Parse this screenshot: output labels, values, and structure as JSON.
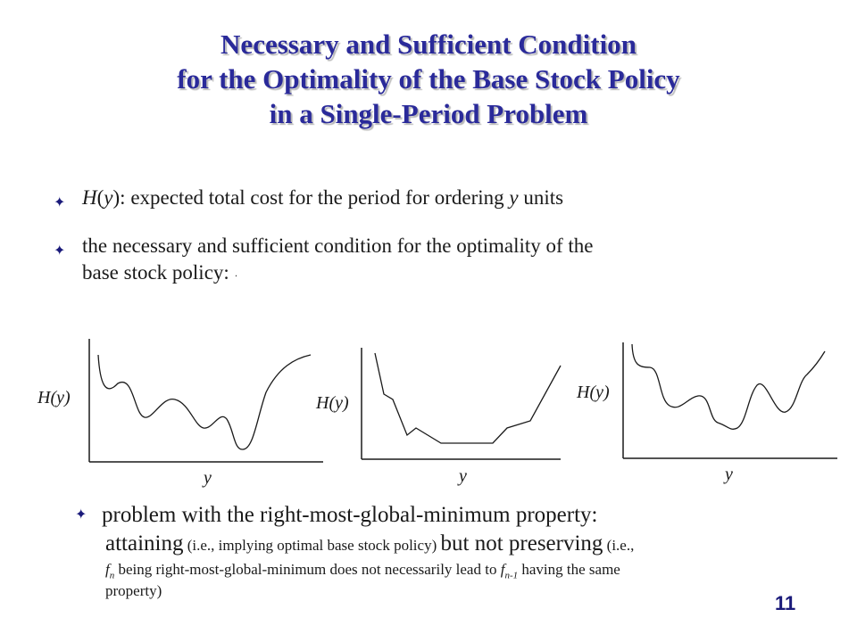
{
  "title": {
    "line1": "Necessary and Sufficient Condition",
    "line2": "for the Optimality of the Base Stock Policy",
    "line3": "in a Single-Period Problem"
  },
  "bullet_mark": "✦",
  "bullets": [
    {
      "func": "H",
      "var": "y",
      "text": "): expected total cost for the period for ordering ",
      "var2": "y",
      "text2": " units"
    },
    {
      "line1": "the necessary and sufficient condition for the optimality of the",
      "line2": "base stock policy:",
      "trailing_mark": "·"
    }
  ],
  "graphs": [
    {
      "ylabel": "H(y)",
      "xlabel": "y"
    },
    {
      "ylabel": "H(y)",
      "xlabel": "y"
    },
    {
      "ylabel": "H(y)",
      "xlabel": "y"
    }
  ],
  "bullet3": {
    "line1": "problem with the right-most-global-minimum property:",
    "attaining": "attaining",
    "attaining_note": " (i.e., implying optimal base stock policy) ",
    "but": "but not preserving",
    "but_note": " (i.e.,",
    "f": "f",
    "sub_n": "n",
    "line3_mid": " being right-most-global-minimum  does not necessarily  lead to ",
    "f2": "f",
    "sub_n1": "n-1",
    "line3_end": " having the same",
    "line4": "property)"
  },
  "page_number": "11",
  "colors": {
    "title": "#2a2a9a",
    "accent": "#1a1a7a"
  }
}
